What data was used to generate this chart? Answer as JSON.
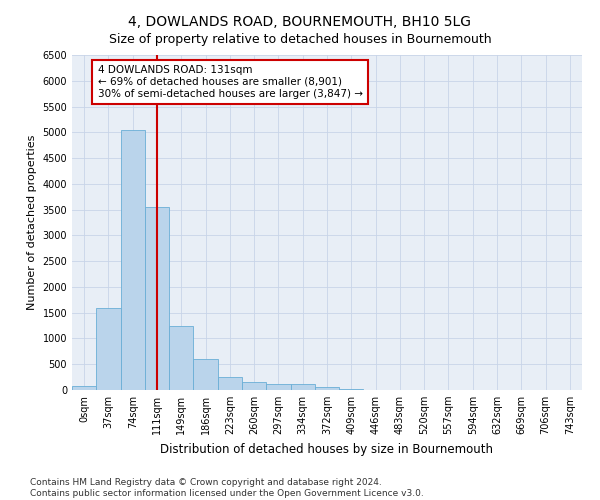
{
  "title": "4, DOWLANDS ROAD, BOURNEMOUTH, BH10 5LG",
  "subtitle": "Size of property relative to detached houses in Bournemouth",
  "xlabel": "Distribution of detached houses by size in Bournemouth",
  "ylabel": "Number of detached properties",
  "footer_line1": "Contains HM Land Registry data © Crown copyright and database right 2024.",
  "footer_line2": "Contains public sector information licensed under the Open Government Licence v3.0.",
  "bar_labels": [
    "0sqm",
    "37sqm",
    "74sqm",
    "111sqm",
    "149sqm",
    "186sqm",
    "223sqm",
    "260sqm",
    "297sqm",
    "334sqm",
    "372sqm",
    "409sqm",
    "446sqm",
    "483sqm",
    "520sqm",
    "557sqm",
    "594sqm",
    "632sqm",
    "669sqm",
    "706sqm",
    "743sqm"
  ],
  "bar_values": [
    70,
    1600,
    5050,
    3550,
    1250,
    600,
    250,
    150,
    120,
    110,
    60,
    10,
    0,
    0,
    0,
    0,
    0,
    0,
    0,
    0,
    0
  ],
  "bar_color": "#bad4eb",
  "bar_edge_color": "#6aaed6",
  "grid_color": "#c8d4e8",
  "background_color": "#e8eef6",
  "property_label": "4 DOWLANDS ROAD: 131sqm",
  "annotation_line1": "← 69% of detached houses are smaller (8,901)",
  "annotation_line2": "30% of semi-detached houses are larger (3,847) →",
  "vline_color": "#cc0000",
  "vline_x": 3.0,
  "annotation_box_color": "#cc0000",
  "ylim": [
    0,
    6500
  ],
  "yticks": [
    0,
    500,
    1000,
    1500,
    2000,
    2500,
    3000,
    3500,
    4000,
    4500,
    5000,
    5500,
    6000,
    6500
  ],
  "title_fontsize": 10,
  "subtitle_fontsize": 9,
  "xlabel_fontsize": 8.5,
  "ylabel_fontsize": 8,
  "tick_fontsize": 7,
  "annotation_fontsize": 7.5,
  "footer_fontsize": 6.5
}
